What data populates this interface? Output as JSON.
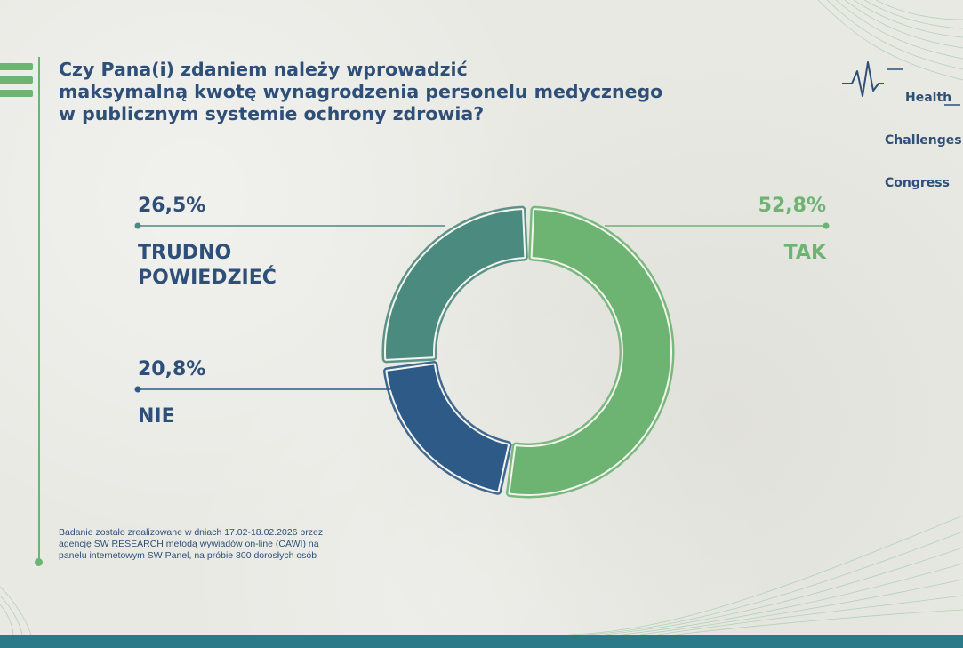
{
  "title_lines": [
    "Czy Pana(i) zdaniem należy wprowadzić",
    "maksymalną kwotę wynagrodzenia personelu medycznego",
    "w publicznym systemie ochrony zdrowia?"
  ],
  "logo": {
    "lines": [
      "Health",
      "Challenges",
      "Congress"
    ]
  },
  "note_lines": [
    "Badanie zostało zrealizowane w dniach 17.02-18.02.2026 przez",
    "agencję SW RESEARCH metodą wywiadów on-line (CAWI) na",
    "panelu internetowym SW Panel, na próbie 800 dorosłych osób"
  ],
  "colors": {
    "accent": "#6db472",
    "text": "#2e4f78",
    "tak": "#6db472",
    "trudno": "#4b8a7e",
    "nie": "#2d5a87",
    "bottom_bar": "#2b7a8a"
  },
  "chart_data": {
    "type": "pie",
    "donut": true,
    "title": "Czy Pana(i) zdaniem należy wprowadzić maksymalną kwotę wynagrodzenia personelu medycznego w publicznym systemie ochrony zdrowia?",
    "categories": [
      "TAK",
      "NIE",
      "TRUDNO POWIEDZIEĆ"
    ],
    "values": [
      52.8,
      20.8,
      26.5
    ],
    "value_labels": [
      "52,8%",
      "20,8%",
      "26,5%"
    ],
    "category_lines": [
      [
        "TAK"
      ],
      [
        "NIE"
      ],
      [
        "TRUDNO",
        "POWIEDZIEĆ"
      ]
    ],
    "colors": [
      "#6db472",
      "#2d5a87",
      "#4b8a7e"
    ]
  }
}
